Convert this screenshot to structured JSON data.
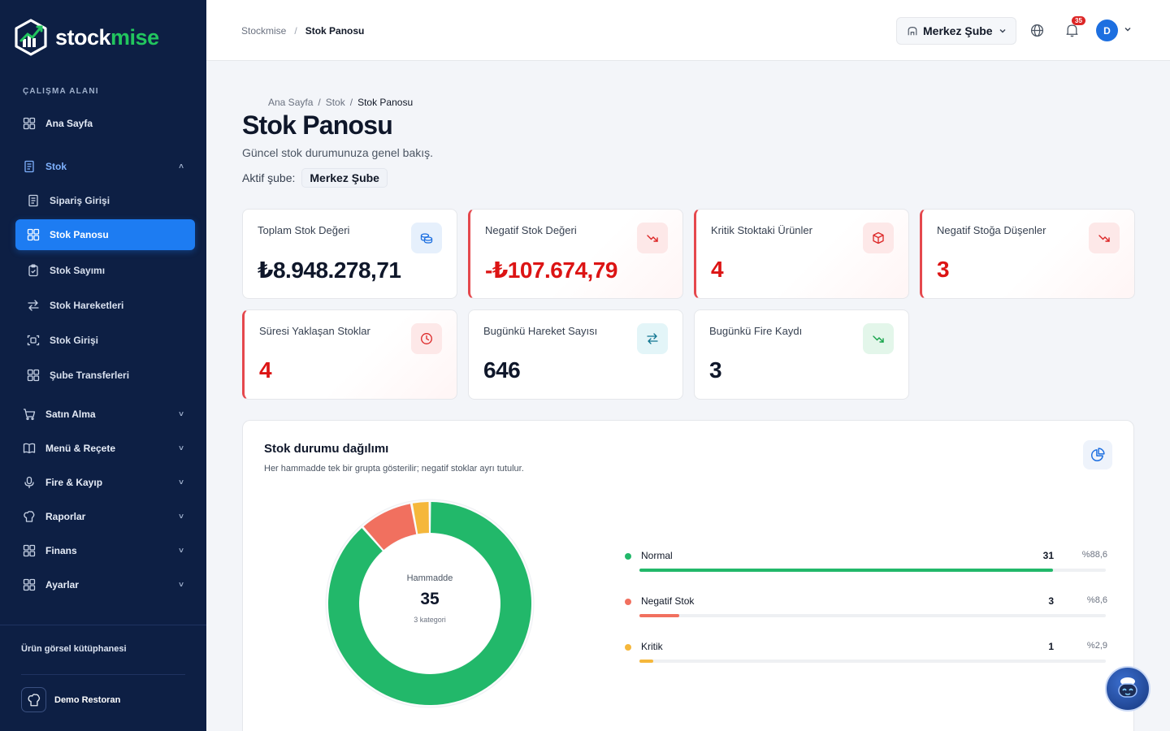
{
  "app": {
    "logo_text_a": "stock",
    "logo_text_b": "mise"
  },
  "sidebar": {
    "section_label": "ÇALIŞMA ALANI",
    "home": "Ana Sayfa",
    "stok": "Stok",
    "stok_subitems": [
      "Sipariş Girişi",
      "Stok Panosu",
      "Stok Sayımı",
      "Stok Hareketleri",
      "Stok Girişi",
      "Şube Transferleri"
    ],
    "groups": [
      "Satın Alma",
      "Menü & Reçete",
      "Fire & Kayıp",
      "Raporlar",
      "Finans",
      "Ayarlar"
    ],
    "library": "Ürün görsel kütüphanesi",
    "restaurant": "Demo Restoran"
  },
  "topbar": {
    "crumb_root": "Stockmise",
    "crumb_sep": "/",
    "crumb_current": "Stok Panosu",
    "branch": "Merkez Şube",
    "notifications": "35",
    "avatar_initial": "D"
  },
  "page": {
    "crumbs": [
      "Ana Sayfa",
      "Stok",
      "Stok Panosu"
    ],
    "title": "Stok Panosu",
    "subtitle": "Güncel stok durumunuza genel bakış.",
    "active_branch_label": "Aktif şube:",
    "active_branch_value": "Merkez Şube"
  },
  "kpis": [
    {
      "label": "Toplam Stok Değeri",
      "value": "₺8.948.278,71"
    },
    {
      "label": "Negatif Stok Değeri",
      "value": "-₺107.674,79"
    },
    {
      "label": "Kritik Stoktaki Ürünler",
      "value": "4"
    },
    {
      "label": "Negatif Stoğa Düşenler",
      "value": "3"
    },
    {
      "label": "Süresi Yaklaşan Stoklar",
      "value": "4"
    },
    {
      "label": "Bugünkü Hareket Sayısı",
      "value": "646"
    },
    {
      "label": "Bugünkü Fire Kaydı",
      "value": "3"
    }
  ],
  "distribution": {
    "title": "Stok durumu dağılımı",
    "subtitle": "Her hammadde tek bir grupta gösterilir; negatif stoklar ayrı tutulur.",
    "center_label": "Hammadde",
    "center_value": "35",
    "center_sub": "3 kategori",
    "items": [
      {
        "name": "Normal",
        "count": "31",
        "pct": "%88,6",
        "share": 88.6,
        "color": "#22b86a"
      },
      {
        "name": "Negatif Stok",
        "count": "3",
        "pct": "%8,6",
        "share": 8.6,
        "color": "#f1705f"
      },
      {
        "name": "Kritik",
        "count": "1",
        "pct": "%2,9",
        "share": 2.9,
        "color": "#f5b73b"
      }
    ]
  },
  "colors": {
    "sidebar": "#0d1f44",
    "accent": "#1d7cf2",
    "negative": "#dc1414"
  }
}
